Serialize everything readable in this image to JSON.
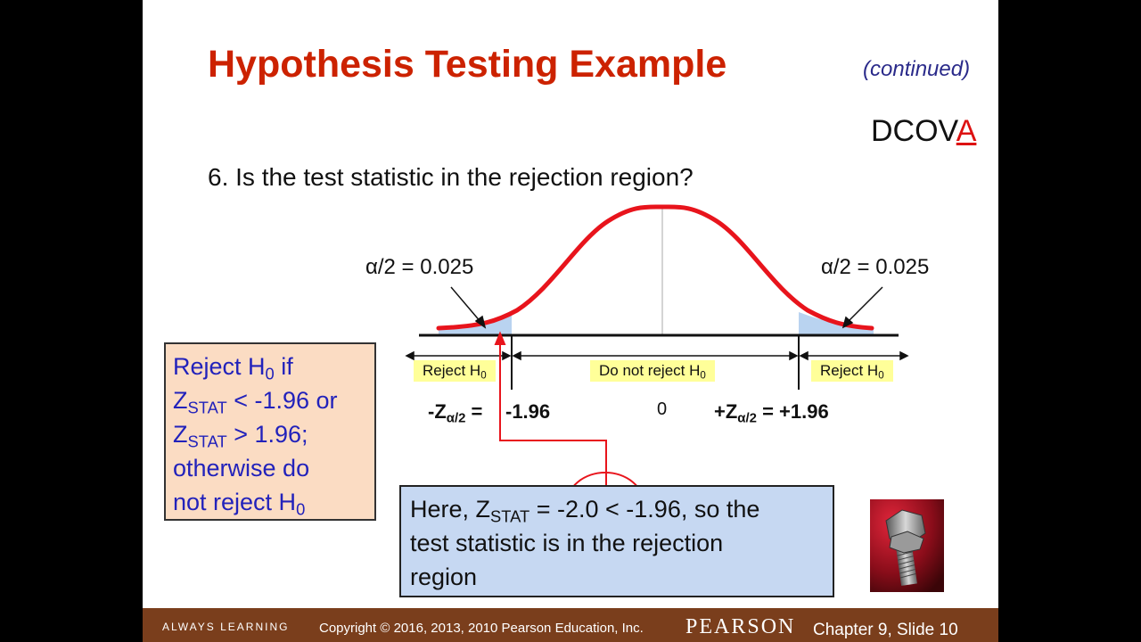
{
  "slide": {
    "title": "Hypothesis Testing Example",
    "continued": "(continued)",
    "dcova_prefix": "DCOV",
    "dcova_highlight": "A",
    "question": "6. Is the test statistic in the rejection region?"
  },
  "diagram": {
    "alpha_left": "α/2 = 0.025",
    "alpha_right": "α/2 = 0.025",
    "reject_left": "Reject H",
    "do_not_reject": "Do not reject H",
    "reject_right": "Reject H",
    "h_sub": "0",
    "crit_left_label": "-Z",
    "crit_left_sub": "α/2",
    "crit_left_eq": " =",
    "crit_left_value": "-1.96",
    "center_value": "0",
    "crit_right_label": "+Z",
    "crit_right_sub": "α/2",
    "crit_right_value": " = +1.96",
    "curve_color": "#e8141c",
    "tail_color": "#b9d3f0"
  },
  "rule_box": {
    "line1": "Reject H",
    "line1_sub": "0",
    "line1_end": " if",
    "z": "Z",
    "stat_sub": "STAT",
    "line2_end": " < -1.96 or",
    "line3_end": " > 1.96;",
    "line4": "otherwise do",
    "line5": "not reject H",
    "line5_sub": "0"
  },
  "conclusion_box": {
    "part1": "Here, Z",
    "sub": "STAT",
    "part2": " = -2.0 < -1.96, so the",
    "line2": "test statistic is in the rejection",
    "line3": "region"
  },
  "footer": {
    "always_learning": "ALWAYS LEARNING",
    "copyright": "Copyright © 2016, 2013, 2010 Pearson Education, Inc.",
    "brand": "PEARSON",
    "chapter": "Chapter 9, Slide 10"
  }
}
